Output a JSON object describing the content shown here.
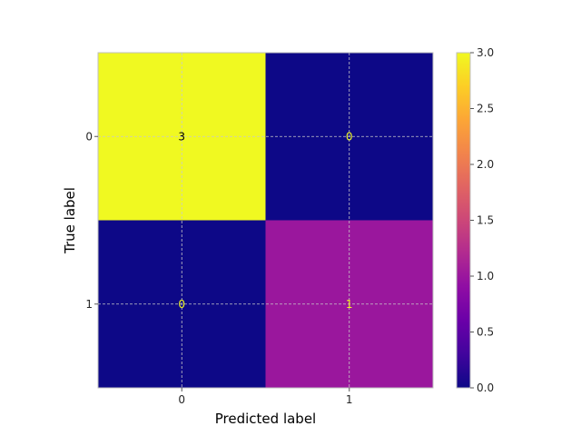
{
  "chart_data": {
    "type": "heatmap",
    "title": "",
    "xlabel": "Predicted label",
    "ylabel": "True label",
    "x_categories": [
      "0",
      "1"
    ],
    "y_categories": [
      "0",
      "1"
    ],
    "matrix": [
      [
        3,
        0
      ],
      [
        0,
        1
      ]
    ],
    "cell_labels": [
      [
        "3",
        "0"
      ],
      [
        "0",
        "1"
      ]
    ],
    "colormap": "plasma",
    "colorbar": {
      "range": [
        0.0,
        3.0
      ],
      "ticks": [
        0.0,
        0.5,
        1.0,
        1.5,
        2.0,
        2.5,
        3.0
      ],
      "tick_labels": [
        "0.0",
        "0.5",
        "1.0",
        "1.5",
        "2.0",
        "2.5",
        "3.0"
      ]
    },
    "grid": true,
    "colors": {
      "low": "#0d0887",
      "high": "#f0f921",
      "dark_text": "#000000",
      "light_text": "#f0f921"
    }
  }
}
